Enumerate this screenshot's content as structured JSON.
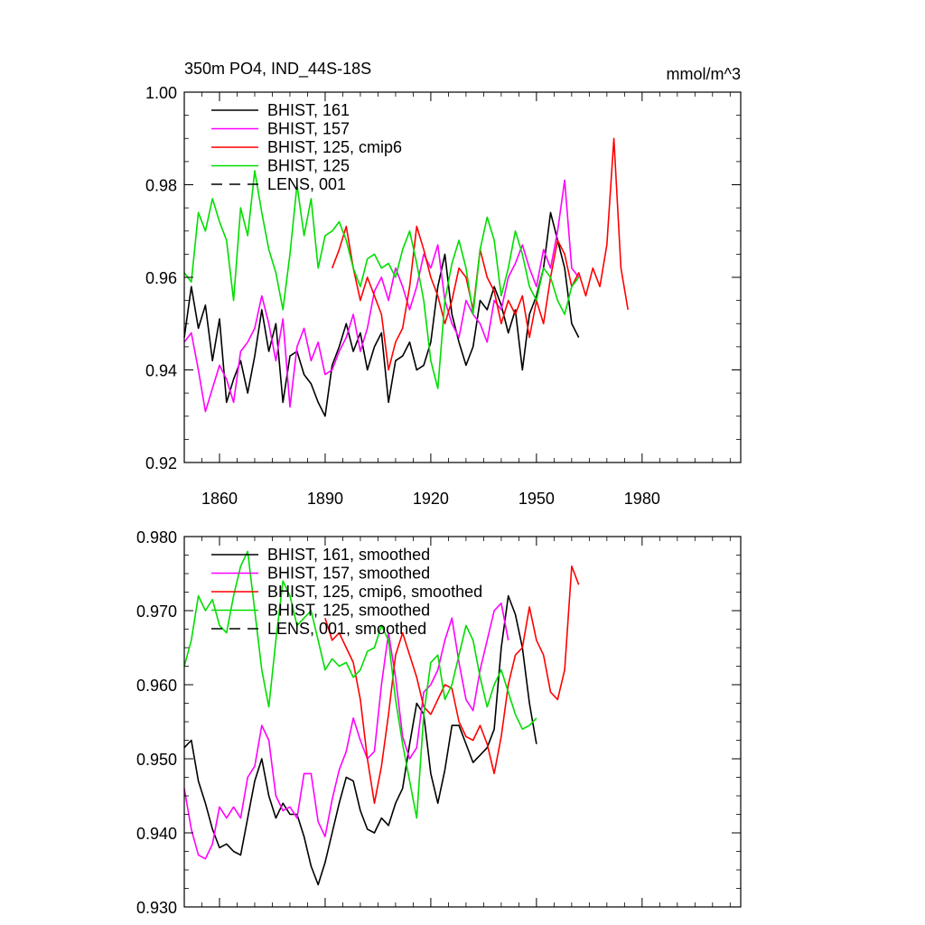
{
  "chart_data": [
    {
      "type": "line",
      "title_left": "350m PO4, IND_44S-18S",
      "title_right": "mmol/m^3",
      "xlim": [
        1850,
        2008
      ],
      "ylim": [
        0.92,
        1.0
      ],
      "x_ticks": [
        1860,
        1890,
        1920,
        1950,
        1980
      ],
      "x_tick_labels": [
        "1860",
        "1890",
        "1920",
        "1950",
        "1980"
      ],
      "y_ticks": [
        0.92,
        0.94,
        0.96,
        0.98,
        1.0
      ],
      "y_tick_labels": [
        "0.92",
        "0.94",
        "0.96",
        "0.98",
        "1.00"
      ],
      "legend": [
        {
          "label": "BHIST, 161",
          "color": "#000000",
          "dash": false
        },
        {
          "label": "BHIST, 157",
          "color": "#ff00ff",
          "dash": false
        },
        {
          "label": "BHIST, 125, cmip6",
          "color": "#ff0000",
          "dash": false
        },
        {
          "label": "BHIST, 125",
          "color": "#00dd00",
          "dash": false
        },
        {
          "label": "LENS, 001",
          "color": "#000000",
          "dash": true
        }
      ],
      "series": [
        {
          "name": "BHIST, 161",
          "color": "#000000",
          "x_start": 1850,
          "x_step": 2,
          "values": [
            0.947,
            0.958,
            0.949,
            0.954,
            0.942,
            0.951,
            0.933,
            0.938,
            0.942,
            0.935,
            0.943,
            0.953,
            0.944,
            0.95,
            0.933,
            0.943,
            0.944,
            0.939,
            0.937,
            0.933,
            0.93,
            0.941,
            0.945,
            0.95,
            0.944,
            0.948,
            0.94,
            0.945,
            0.948,
            0.933,
            0.942,
            0.943,
            0.946,
            0.94,
            0.941,
            0.946,
            0.958,
            0.965,
            0.952,
            0.946,
            0.941,
            0.945,
            0.955,
            0.953,
            0.958,
            0.954,
            0.948,
            0.953,
            0.94,
            0.952,
            0.956,
            0.962,
            0.974,
            0.968,
            0.962,
            0.95,
            0.947
          ]
        },
        {
          "name": "BHIST, 157",
          "color": "#ff00ff",
          "x_start": 1850,
          "x_step": 2,
          "values": [
            0.946,
            0.948,
            0.94,
            0.931,
            0.936,
            0.941,
            0.938,
            0.933,
            0.944,
            0.946,
            0.949,
            0.956,
            0.95,
            0.942,
            0.951,
            0.932,
            0.945,
            0.949,
            0.942,
            0.946,
            0.939,
            0.94,
            0.944,
            0.947,
            0.952,
            0.944,
            0.949,
            0.957,
            0.96,
            0.955,
            0.962,
            0.958,
            0.953,
            0.958,
            0.965,
            0.962,
            0.967,
            0.955,
            0.95,
            0.947,
            0.955,
            0.952,
            0.95,
            0.946,
            0.955,
            0.953,
            0.96,
            0.963,
            0.967,
            0.962,
            0.958,
            0.966,
            0.962,
            0.97,
            0.981,
            0.962,
            0.96
          ]
        },
        {
          "name": "BHIST, 125, cmip6",
          "color": "#ff0000",
          "x_start": 1892,
          "x_step": 2,
          "values": [
            0.962,
            0.966,
            0.971,
            0.962,
            0.955,
            0.96,
            0.956,
            0.952,
            0.94,
            0.946,
            0.949,
            0.958,
            0.971,
            0.966,
            0.96,
            0.956,
            0.95,
            0.955,
            0.962,
            0.96,
            0.953,
            0.966,
            0.96,
            0.957,
            0.95,
            0.955,
            0.952,
            0.956,
            0.947,
            0.955,
            0.95,
            0.96,
            0.968,
            0.965,
            0.958,
            0.961,
            0.956,
            0.962,
            0.958,
            0.967,
            0.99,
            0.962,
            0.953
          ]
        },
        {
          "name": "BHIST, 125",
          "color": "#00dd00",
          "x_start": 1850,
          "x_step": 2,
          "values": [
            0.961,
            0.959,
            0.974,
            0.97,
            0.977,
            0.972,
            0.968,
            0.955,
            0.975,
            0.969,
            0.983,
            0.974,
            0.966,
            0.961,
            0.953,
            0.965,
            0.98,
            0.969,
            0.977,
            0.962,
            0.969,
            0.97,
            0.972,
            0.968,
            0.962,
            0.958,
            0.964,
            0.965,
            0.962,
            0.963,
            0.96,
            0.966,
            0.97,
            0.963,
            0.955,
            0.942,
            0.936,
            0.955,
            0.963,
            0.968,
            0.962,
            0.952,
            0.966,
            0.973,
            0.968,
            0.956,
            0.962,
            0.97,
            0.965,
            0.958,
            0.955,
            0.962,
            0.96,
            0.955,
            0.952,
            0.958,
            0.96
          ]
        }
      ]
    },
    {
      "type": "line",
      "xlim": [
        1850,
        2008
      ],
      "ylim": [
        0.93,
        0.98
      ],
      "x_ticks": [
        1860,
        1890,
        1920,
        1950,
        1980
      ],
      "y_ticks": [
        0.93,
        0.94,
        0.95,
        0.96,
        0.97,
        0.98
      ],
      "y_tick_labels": [
        "0.930",
        "0.940",
        "0.950",
        "0.960",
        "0.970",
        "0.980"
      ],
      "legend": [
        {
          "label": "BHIST, 161, smoothed",
          "color": "#000000",
          "dash": false
        },
        {
          "label": "BHIST, 157, smoothed",
          "color": "#ff00ff",
          "dash": false
        },
        {
          "label": "BHIST, 125, cmip6, smoothed",
          "color": "#ff0000",
          "dash": false
        },
        {
          "label": "BHIST, 125, smoothed",
          "color": "#00dd00",
          "dash": false
        },
        {
          "label": "LENS, 001, smoothed",
          "color": "#000000",
          "dash": true
        }
      ],
      "series": [
        {
          "name": "BHIST, 161, smoothed",
          "color": "#000000",
          "x_start": 1850,
          "x_step": 2,
          "values": [
            0.9515,
            0.9525,
            0.947,
            0.944,
            0.9405,
            0.938,
            0.9385,
            0.9375,
            0.937,
            0.942,
            0.947,
            0.95,
            0.945,
            0.942,
            0.944,
            0.9425,
            0.9425,
            0.9395,
            0.9355,
            0.933,
            0.936,
            0.94,
            0.944,
            0.9475,
            0.947,
            0.943,
            0.9405,
            0.94,
            0.942,
            0.941,
            0.944,
            0.946,
            0.952,
            0.9575,
            0.956,
            0.948,
            0.944,
            0.9485,
            0.9545,
            0.9545,
            0.952,
            0.9495,
            0.9505,
            0.9515,
            0.954,
            0.965,
            0.972,
            0.9695,
            0.965,
            0.9575,
            0.952
          ]
        },
        {
          "name": "BHIST, 157, smoothed",
          "color": "#ff00ff",
          "x_start": 1850,
          "x_step": 2,
          "values": [
            0.946,
            0.9405,
            0.937,
            0.9365,
            0.9385,
            0.9435,
            0.942,
            0.9435,
            0.942,
            0.9475,
            0.949,
            0.9545,
            0.9525,
            0.945,
            0.943,
            0.9435,
            0.942,
            0.948,
            0.948,
            0.9415,
            0.9395,
            0.9445,
            0.9485,
            0.951,
            0.9555,
            0.9525,
            0.95,
            0.951,
            0.96,
            0.967,
            0.961,
            0.953,
            0.95,
            0.9515,
            0.959,
            0.96,
            0.962,
            0.966,
            0.969,
            0.963,
            0.958,
            0.9565,
            0.962,
            0.966,
            0.97,
            0.971,
            0.966
          ]
        },
        {
          "name": "BHIST, 125, cmip6, smoothed",
          "color": "#ff0000",
          "x_start": 1890,
          "x_step": 2,
          "values": [
            0.969,
            0.966,
            0.967,
            0.965,
            0.963,
            0.958,
            0.95,
            0.944,
            0.949,
            0.956,
            0.964,
            0.967,
            0.964,
            0.961,
            0.957,
            0.956,
            0.958,
            0.96,
            0.9595,
            0.955,
            0.953,
            0.9525,
            0.9545,
            0.952,
            0.948,
            0.953,
            0.96,
            0.964,
            0.965,
            0.9705,
            0.966,
            0.964,
            0.959,
            0.958,
            0.962,
            0.976,
            0.9735
          ]
        },
        {
          "name": "BHIST, 125, smoothed",
          "color": "#00dd00",
          "x_start": 1850,
          "x_step": 2,
          "values": [
            0.9625,
            0.966,
            0.972,
            0.97,
            0.9715,
            0.968,
            0.967,
            0.972,
            0.976,
            0.978,
            0.97,
            0.962,
            0.957,
            0.966,
            0.974,
            0.972,
            0.968,
            0.969,
            0.97,
            0.966,
            0.962,
            0.9635,
            0.9625,
            0.963,
            0.961,
            0.962,
            0.9645,
            0.965,
            0.968,
            0.966,
            0.958,
            0.952,
            0.947,
            0.942,
            0.956,
            0.963,
            0.964,
            0.958,
            0.96,
            0.964,
            0.968,
            0.966,
            0.961,
            0.957,
            0.96,
            0.962,
            0.959,
            0.956,
            0.954,
            0.9545,
            0.9555
          ]
        }
      ]
    }
  ]
}
